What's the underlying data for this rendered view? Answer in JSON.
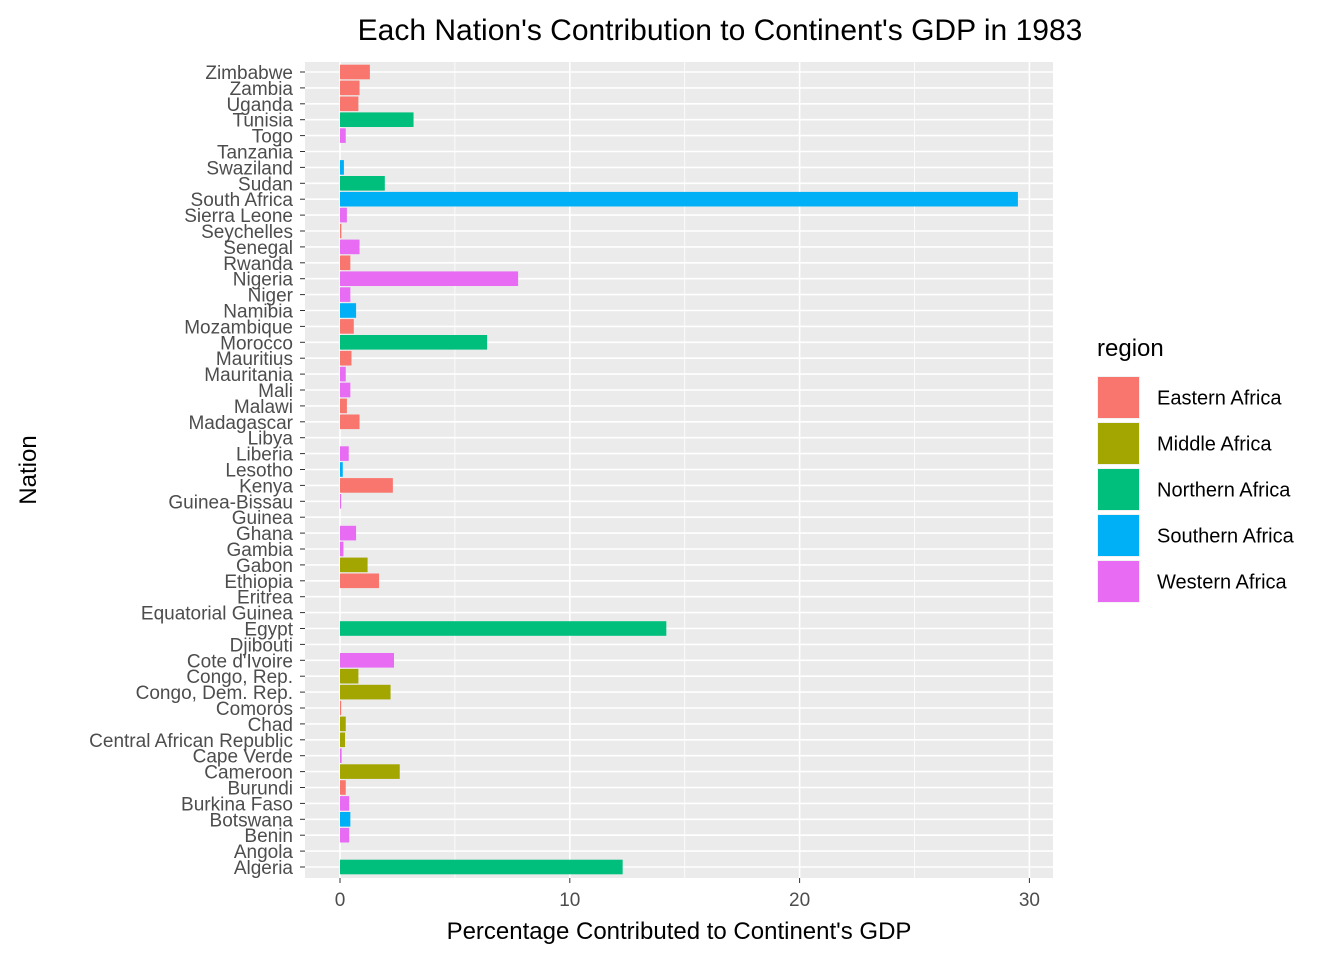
{
  "chart_data": {
    "type": "bar",
    "orientation": "horizontal",
    "title": "Each Nation's Contribution to Continent's GDP in 1983",
    "xlabel": "Percentage Contributed to Continent's GDP",
    "ylabel": "Nation",
    "xlim": [
      -1.4,
      31
    ],
    "xticks": [
      0,
      10,
      20,
      30
    ],
    "grid": true,
    "legend": {
      "title": "region",
      "placement": "right",
      "entries": [
        {
          "name": "Eastern Africa",
          "color": "#F8766D"
        },
        {
          "name": "Middle Africa",
          "color": "#A3A500"
        },
        {
          "name": "Northern Africa",
          "color": "#00BF7D"
        },
        {
          "name": "Southern Africa",
          "color": "#00B0F6"
        },
        {
          "name": "Western Africa",
          "color": "#E76BF3"
        }
      ]
    },
    "categories": [
      "Algeria",
      "Angola",
      "Benin",
      "Botswana",
      "Burkina Faso",
      "Burundi",
      "Cameroon",
      "Cape Verde",
      "Central African Republic",
      "Chad",
      "Comoros",
      "Congo, Dem. Rep.",
      "Congo, Rep.",
      "Cote d'Ivoire",
      "Djibouti",
      "Egypt",
      "Equatorial Guinea",
      "Eritrea",
      "Ethiopia",
      "Gabon",
      "Gambia",
      "Ghana",
      "Guinea",
      "Guinea-Bissau",
      "Kenya",
      "Lesotho",
      "Liberia",
      "Libya",
      "Madagascar",
      "Malawi",
      "Mali",
      "Mauritania",
      "Mauritius",
      "Morocco",
      "Mozambique",
      "Namibia",
      "Niger",
      "Nigeria",
      "Rwanda",
      "Senegal",
      "Seychelles",
      "Sierra Leone",
      "South Africa",
      "Sudan",
      "Swaziland",
      "Tanzania",
      "Togo",
      "Tunisia",
      "Uganda",
      "Zambia",
      "Zimbabwe"
    ],
    "bars": [
      {
        "nation": "Algeria",
        "region": "Northern Africa",
        "value": 12.3
      },
      {
        "nation": "Angola",
        "region": null,
        "value": 0
      },
      {
        "nation": "Benin",
        "region": "Western Africa",
        "value": 0.4
      },
      {
        "nation": "Botswana",
        "region": "Southern Africa",
        "value": 0.45
      },
      {
        "nation": "Burkina Faso",
        "region": "Western Africa",
        "value": 0.4
      },
      {
        "nation": "Burundi",
        "region": "Eastern Africa",
        "value": 0.25
      },
      {
        "nation": "Cameroon",
        "region": "Middle Africa",
        "value": 2.6
      },
      {
        "nation": "Cape Verde",
        "region": "Western Africa",
        "value": 0.07
      },
      {
        "nation": "Central African Republic",
        "region": "Middle Africa",
        "value": 0.22
      },
      {
        "nation": "Chad",
        "region": "Middle Africa",
        "value": 0.25
      },
      {
        "nation": "Comoros",
        "region": "Eastern Africa",
        "value": 0.05
      },
      {
        "nation": "Congo, Dem. Rep.",
        "region": "Middle Africa",
        "value": 2.2
      },
      {
        "nation": "Congo, Rep.",
        "region": "Middle Africa",
        "value": 0.8
      },
      {
        "nation": "Cote d'Ivoire",
        "region": "Western Africa",
        "value": 2.35
      },
      {
        "nation": "Djibouti",
        "region": null,
        "value": 0
      },
      {
        "nation": "Egypt",
        "region": "Northern Africa",
        "value": 14.2
      },
      {
        "nation": "Equatorial Guinea",
        "region": null,
        "value": 0
      },
      {
        "nation": "Eritrea",
        "region": null,
        "value": 0
      },
      {
        "nation": "Ethiopia",
        "region": "Eastern Africa",
        "value": 1.7
      },
      {
        "nation": "Gabon",
        "region": "Middle Africa",
        "value": 1.2
      },
      {
        "nation": "Gambia",
        "region": "Western Africa",
        "value": 0.15
      },
      {
        "nation": "Ghana",
        "region": "Western Africa",
        "value": 0.7
      },
      {
        "nation": "Guinea",
        "region": null,
        "value": 0
      },
      {
        "nation": "Guinea-Bissau",
        "region": "Western Africa",
        "value": 0.05
      },
      {
        "nation": "Kenya",
        "region": "Eastern Africa",
        "value": 2.3
      },
      {
        "nation": "Lesotho",
        "region": "Southern Africa",
        "value": 0.12
      },
      {
        "nation": "Liberia",
        "region": "Western Africa",
        "value": 0.38
      },
      {
        "nation": "Libya",
        "region": null,
        "value": 0
      },
      {
        "nation": "Madagascar",
        "region": "Eastern Africa",
        "value": 0.85
      },
      {
        "nation": "Malawi",
        "region": "Eastern Africa",
        "value": 0.3
      },
      {
        "nation": "Mali",
        "region": "Western Africa",
        "value": 0.45
      },
      {
        "nation": "Mauritania",
        "region": "Western Africa",
        "value": 0.25
      },
      {
        "nation": "Mauritius",
        "region": "Eastern Africa",
        "value": 0.5
      },
      {
        "nation": "Morocco",
        "region": "Northern Africa",
        "value": 6.4
      },
      {
        "nation": "Mozambique",
        "region": "Eastern Africa",
        "value": 0.6
      },
      {
        "nation": "Namibia",
        "region": "Southern Africa",
        "value": 0.7
      },
      {
        "nation": "Niger",
        "region": "Western Africa",
        "value": 0.45
      },
      {
        "nation": "Nigeria",
        "region": "Western Africa",
        "value": 7.75
      },
      {
        "nation": "Rwanda",
        "region": "Eastern Africa",
        "value": 0.45
      },
      {
        "nation": "Senegal",
        "region": "Western Africa",
        "value": 0.85
      },
      {
        "nation": "Seychelles",
        "region": "Eastern Africa",
        "value": 0.06
      },
      {
        "nation": "Sierra Leone",
        "region": "Western Africa",
        "value": 0.3
      },
      {
        "nation": "South Africa",
        "region": "Southern Africa",
        "value": 29.5
      },
      {
        "nation": "Sudan",
        "region": "Northern Africa",
        "value": 1.95
      },
      {
        "nation": "Swaziland",
        "region": "Southern Africa",
        "value": 0.17
      },
      {
        "nation": "Tanzania",
        "region": null,
        "value": 0
      },
      {
        "nation": "Togo",
        "region": "Western Africa",
        "value": 0.25
      },
      {
        "nation": "Tunisia",
        "region": "Northern Africa",
        "value": 3.2
      },
      {
        "nation": "Uganda",
        "region": "Eastern Africa",
        "value": 0.8
      },
      {
        "nation": "Zambia",
        "region": "Eastern Africa",
        "value": 0.85
      },
      {
        "nation": "Zimbabwe",
        "region": "Eastern Africa",
        "value": 1.3
      }
    ]
  }
}
